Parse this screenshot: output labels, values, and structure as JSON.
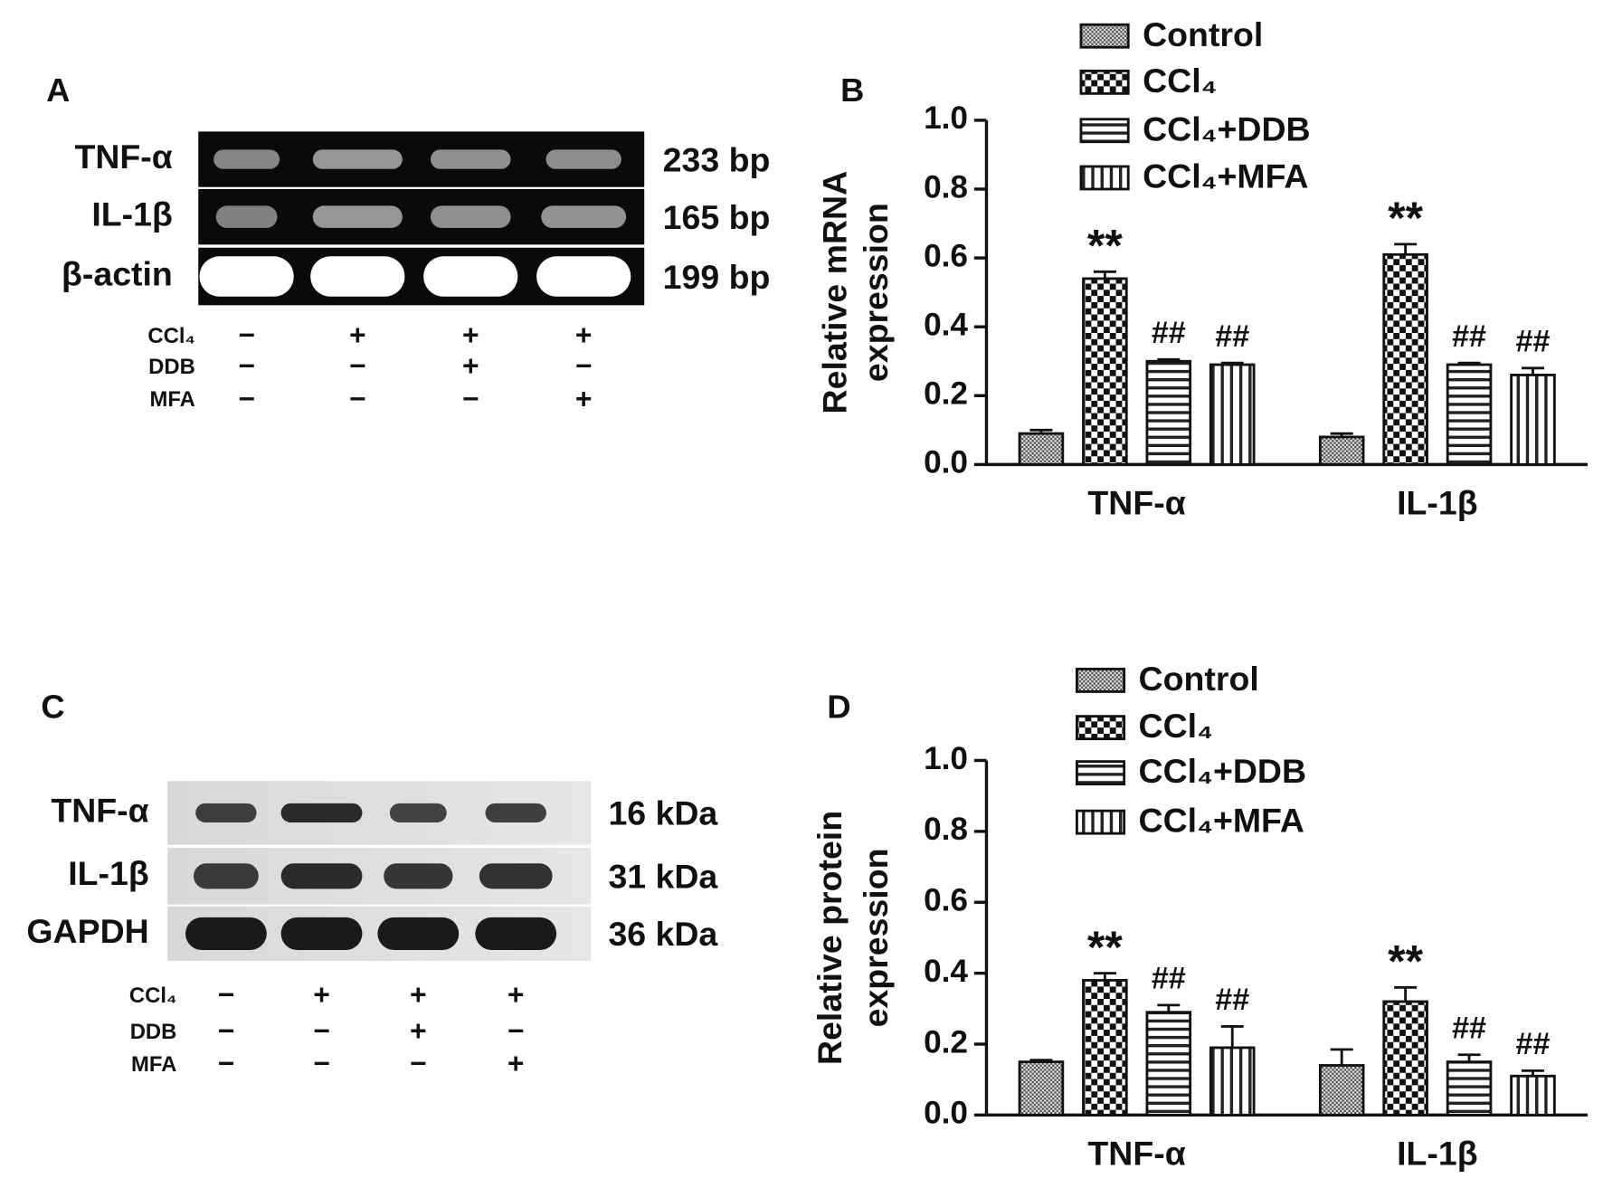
{
  "panels": [
    {
      "label": "A",
      "rows": [
        {
          "name": "TNF-α",
          "size": "233 bp"
        },
        {
          "name": "IL-1β",
          "size": "165 bp"
        },
        {
          "name": "β-actin",
          "size": "199 bp"
        }
      ],
      "treatments": [
        {
          "name": "CCl₄",
          "signs": [
            "−",
            "+",
            "+",
            "+"
          ]
        },
        {
          "name": "DDB",
          "signs": [
            "−",
            "−",
            "+",
            "−"
          ]
        },
        {
          "name": "MFA",
          "signs": [
            "−",
            "−",
            "−",
            "+"
          ]
        }
      ]
    },
    {
      "label": "C",
      "rows": [
        {
          "name": "TNF-α",
          "size": "16 kDa"
        },
        {
          "name": "IL-1β",
          "size": "31 kDa"
        },
        {
          "name": "GAPDH",
          "size": "36 kDa"
        }
      ],
      "treatments": [
        {
          "name": "CCl₄",
          "signs": [
            "−",
            "+",
            "+",
            "+"
          ]
        },
        {
          "name": "DDB",
          "signs": [
            "−",
            "−",
            "+",
            "−"
          ]
        },
        {
          "name": "MFA",
          "signs": [
            "−",
            "−",
            "−",
            "+"
          ]
        }
      ]
    }
  ],
  "chart_data": [
    {
      "type": "bar",
      "label": "B",
      "y_label": [
        "Relative mRNA",
        "expression"
      ],
      "categories": [
        "TNF-α",
        "IL-1β"
      ],
      "series": [
        {
          "name": "Control",
          "pattern": "dots",
          "values": [
            0.09,
            0.08
          ],
          "errors": [
            0.01,
            0.01
          ]
        },
        {
          "name": "CCl₄",
          "pattern": "checker",
          "values": [
            0.54,
            0.61
          ],
          "errors": [
            0.02,
            0.03
          ],
          "annotations": [
            "**",
            "**"
          ]
        },
        {
          "name": "CCl₄+DDB",
          "pattern": "hstripes",
          "values": [
            0.3,
            0.29
          ],
          "errors": [
            0.005,
            0.005
          ],
          "annotations": [
            "##",
            "##"
          ]
        },
        {
          "name": "CCl₄+MFA",
          "pattern": "vstripes",
          "values": [
            0.29,
            0.26
          ],
          "errors": [
            0.005,
            0.02
          ],
          "annotations": [
            "##",
            "##"
          ]
        }
      ],
      "ylim": [
        0,
        1
      ],
      "yticks": [
        {
          "value": 0,
          "label": "0.0"
        },
        {
          "value": 0.2,
          "label": "0.2"
        },
        {
          "value": 0.4,
          "label": "0.4"
        },
        {
          "value": 0.6,
          "label": "0.6"
        },
        {
          "value": 0.8,
          "label": "0.8"
        },
        {
          "value": 1,
          "label": "1.0"
        }
      ]
    },
    {
      "type": "bar",
      "label": "D",
      "y_label": [
        "Relative protein",
        "expression"
      ],
      "categories": [
        "TNF-α",
        "IL-1β"
      ],
      "series": [
        {
          "name": "Control",
          "pattern": "dots",
          "values": [
            0.15,
            0.14
          ],
          "errors": [
            0.005,
            0.045
          ]
        },
        {
          "name": "CCl₄",
          "pattern": "checker",
          "values": [
            0.38,
            0.32
          ],
          "errors": [
            0.02,
            0.04
          ],
          "annotations": [
            "**",
            "**"
          ]
        },
        {
          "name": "CCl₄+DDB",
          "pattern": "hstripes",
          "values": [
            0.29,
            0.15
          ],
          "errors": [
            0.02,
            0.02
          ],
          "annotations": [
            "##",
            "##"
          ]
        },
        {
          "name": "CCl₄+MFA",
          "pattern": "vstripes",
          "values": [
            0.19,
            0.11
          ],
          "errors": [
            0.06,
            0.015
          ],
          "annotations": [
            "##",
            "##"
          ]
        }
      ],
      "ylim": [
        0,
        1
      ],
      "yticks": [
        {
          "value": 0,
          "label": "0.0"
        },
        {
          "value": 0.2,
          "label": "0.2"
        },
        {
          "value": 0.4,
          "label": "0.4"
        },
        {
          "value": 0.6,
          "label": "0.6"
        },
        {
          "value": 0.8,
          "label": "0.8"
        },
        {
          "value": 1,
          "label": "1.0"
        }
      ]
    }
  ]
}
